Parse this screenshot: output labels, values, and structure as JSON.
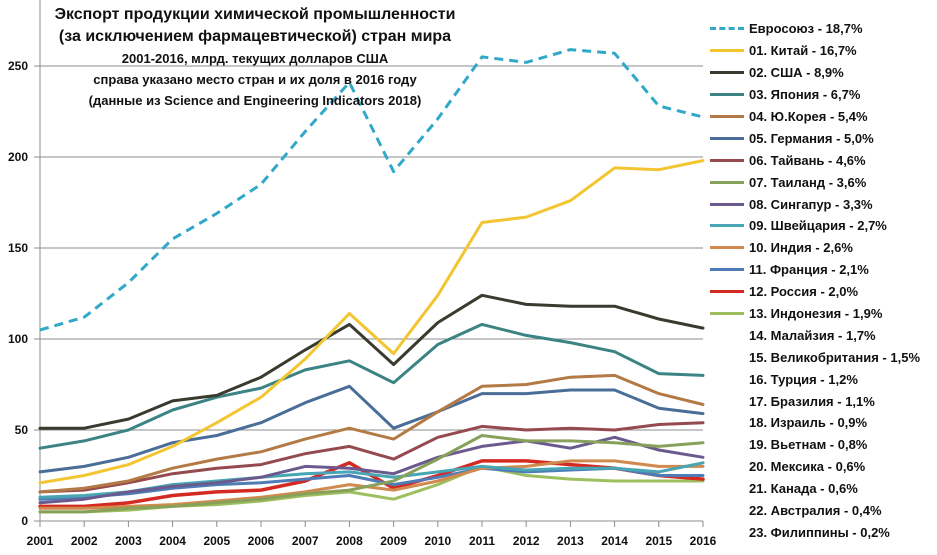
{
  "chart_data": {
    "type": "line",
    "title": "Экспорт продукции химической промышленности (за исключением фармацевтической) стран мира",
    "subtitle_lines": [
      "2001-2016, млрд. текущих долларов США",
      "справа указано место стран и их доля в 2016 году",
      "(данные из Science and Engineering Indicators 2018)"
    ],
    "title_lines": [
      "Экспорт продукции химической промышленности",
      "(за исключением фармацевтической) стран мира"
    ],
    "xlabel": "",
    "ylabel": "",
    "x": [
      "2001",
      "2002",
      "2003",
      "2004",
      "2005",
      "2006",
      "2007",
      "2008",
      "2009",
      "2010",
      "2011",
      "2012",
      "2013",
      "2014",
      "2015",
      "2016"
    ],
    "yticks": [
      "0",
      "50",
      "100",
      "150",
      "200",
      "250"
    ],
    "ylim": [
      0,
      275
    ],
    "grid": "horizontal",
    "legend_position": "right",
    "series": [
      {
        "name": "Евросоюз - 18,7%",
        "color": "#31a8c9",
        "dashed": true,
        "values": [
          105,
          112,
          131,
          155,
          169,
          185,
          214,
          241,
          192,
          221,
          255,
          252,
          259,
          257,
          228,
          222
        ]
      },
      {
        "name": "01. Китай - 16,7%",
        "color": "#f2c531",
        "values": [
          21,
          25,
          31,
          41,
          54,
          68,
          89,
          114,
          92,
          124,
          164,
          167,
          176,
          194,
          193,
          198
        ]
      },
      {
        "name": "02. США - 8,9%",
        "color": "#3a3a2e",
        "values": [
          51,
          51,
          56,
          66,
          69,
          79,
          94,
          108,
          86,
          109,
          124,
          119,
          118,
          118,
          111,
          106
        ]
      },
      {
        "name": "03. Япония - 6,7%",
        "color": "#3c8384",
        "values": [
          40,
          44,
          50,
          61,
          68,
          73,
          83,
          88,
          76,
          97,
          108,
          102,
          98,
          93,
          81,
          80
        ]
      },
      {
        "name": "04. Ю.Корея - 5,4%",
        "color": "#b47a45",
        "values": [
          16,
          18,
          22,
          29,
          34,
          38,
          45,
          51,
          45,
          60,
          74,
          75,
          79,
          80,
          70,
          64
        ]
      },
      {
        "name": "05. Германия - 5,0%",
        "color": "#4a6e98",
        "values": [
          27,
          30,
          35,
          43,
          47,
          54,
          65,
          74,
          51,
          60,
          70,
          70,
          72,
          72,
          62,
          59
        ]
      },
      {
        "name": "06. Тайвань - 4,6%",
        "color": "#944a4e",
        "values": [
          16,
          17,
          21,
          26,
          29,
          31,
          37,
          41,
          34,
          46,
          52,
          50,
          51,
          50,
          53,
          54
        ]
      },
      {
        "name": "07. Таиланд - 3,6%",
        "color": "#88a15a",
        "values": [
          5,
          5,
          7,
          8,
          10,
          12,
          15,
          17,
          22,
          34,
          47,
          44,
          44,
          43,
          41,
          43
        ]
      },
      {
        "name": "08. Сингапур - 3,3%",
        "color": "#6b5a8e",
        "values": [
          10,
          12,
          16,
          19,
          21,
          24,
          30,
          29,
          26,
          35,
          41,
          44,
          40,
          46,
          39,
          35
        ]
      },
      {
        "name": "09. Швейцария - 2,7%",
        "color": "#48a6b4",
        "values": [
          13,
          14,
          16,
          20,
          22,
          24,
          26,
          27,
          24,
          27,
          30,
          28,
          29,
          29,
          27,
          32
        ]
      },
      {
        "name": "10. Индия - 2,6%",
        "color": "#d08a4e",
        "values": [
          7,
          7,
          8,
          9,
          11,
          13,
          16,
          20,
          17,
          22,
          29,
          30,
          33,
          33,
          30,
          30
        ]
      },
      {
        "name": "11. Франция - 2,1%",
        "color": "#4d7cb6",
        "values": [
          12,
          13,
          15,
          18,
          20,
          21,
          23,
          25,
          20,
          24,
          29,
          27,
          28,
          29,
          25,
          25
        ]
      },
      {
        "name": "12. Россия - 2,0%",
        "color": "#d42a22",
        "values": [
          8,
          8,
          10,
          14,
          16,
          17,
          22,
          32,
          18,
          25,
          33,
          33,
          31,
          29,
          25,
          23
        ]
      },
      {
        "name": "13. Индонезия - 1,9%",
        "color": "#9ebf5e",
        "values": [
          5,
          5,
          6,
          8,
          9,
          11,
          14,
          16,
          12,
          20,
          30,
          25,
          23,
          22,
          22,
          22
        ]
      },
      {
        "name": "14. Малайзия - 1,7%",
        "color": "",
        "values": []
      },
      {
        "name": "15. Великобритания - 1,5%",
        "color": "",
        "values": []
      },
      {
        "name": "16. Турция - 1,2%",
        "color": "",
        "values": []
      },
      {
        "name": "17. Бразилия - 1,1%",
        "color": "",
        "values": []
      },
      {
        "name": "18. Израиль - 0,9%",
        "color": "",
        "values": []
      },
      {
        "name": "19. Вьетнам - 0,8%",
        "color": "",
        "values": []
      },
      {
        "name": "20. Мексика - 0,6%",
        "color": "",
        "values": []
      },
      {
        "name": "21. Канада - 0,6%",
        "color": "",
        "values": []
      },
      {
        "name": "22. Австралия - 0,4%",
        "color": "",
        "values": []
      },
      {
        "name": "23. Филиппины - 0,2%",
        "color": "",
        "values": []
      }
    ]
  }
}
